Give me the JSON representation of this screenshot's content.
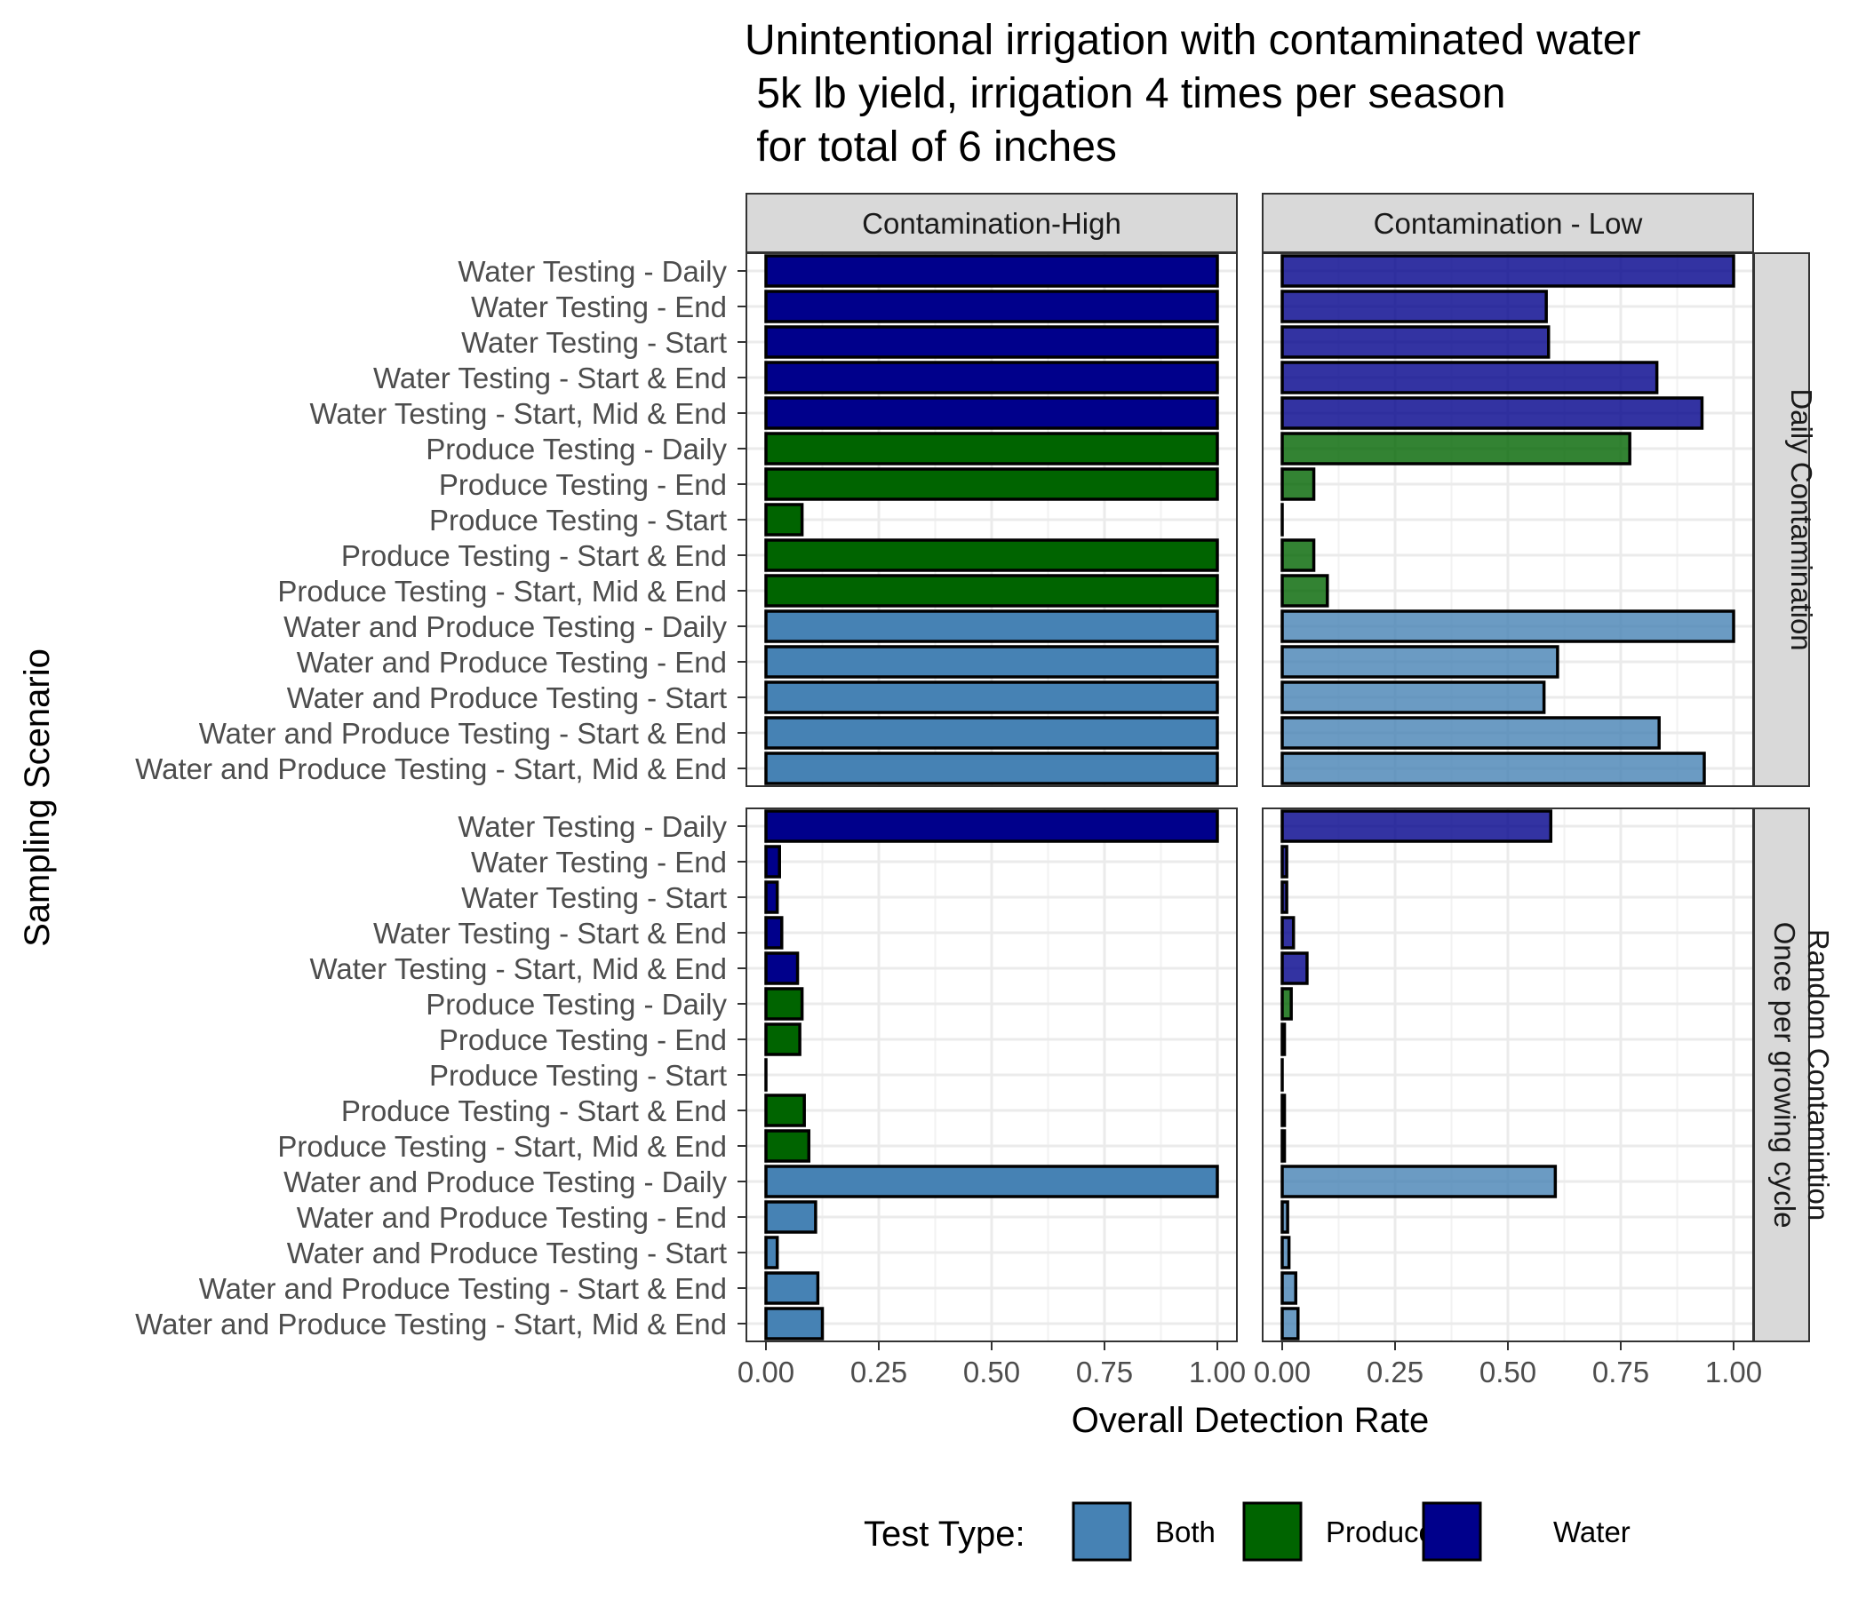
{
  "chart_data": {
    "type": "bar",
    "orientation": "horizontal",
    "title_lines": [
      "Unintentional irrigation with contaminated water",
      " 5k lb yield, irrigation 4 times per season",
      " for total of 6 inches"
    ],
    "xlabel": "Overall Detection Rate",
    "ylabel": "Sampling Scenario",
    "xlim": [
      0,
      1
    ],
    "x_ticks": [
      "0.00",
      "0.25",
      "0.50",
      "0.75",
      "1.00"
    ],
    "grid": true,
    "columns": [
      "Contamination-High",
      "Contamination - Low"
    ],
    "rows": [
      {
        "lines": [
          "Daily Contamination"
        ]
      },
      {
        "lines": [
          "Random Contamintion",
          "Once per growing cycle"
        ]
      }
    ],
    "categories": [
      "Water Testing - Daily",
      "Water Testing -  End",
      "Water Testing -  Start",
      "Water Testing - Start & End",
      "Water Testing - Start, Mid & End",
      "Produce Testing - Daily",
      "Produce Testing - End",
      "Produce Testing - Start",
      "Produce Testing - Start & End",
      "Produce Testing - Start, Mid & End",
      "Water and Produce Testing - Daily",
      "Water and Produce Testing - End",
      "Water and Produce Testing - Start",
      "Water and Produce Testing - Start & End",
      "Water and Produce Testing - Start, Mid & End"
    ],
    "category_test_type": [
      "Water",
      "Water",
      "Water",
      "Water",
      "Water",
      "Produce",
      "Produce",
      "Produce",
      "Produce",
      "Produce",
      "Both",
      "Both",
      "Both",
      "Both",
      "Both"
    ],
    "legend": {
      "title": "Test Type:",
      "position": "bottom",
      "entries": [
        {
          "name": "Both",
          "color": "#4682B4"
        },
        {
          "name": "Produce",
          "color": "#006400"
        },
        {
          "name": "Water",
          "color": "#00008B"
        }
      ]
    },
    "panels": [
      {
        "row": 0,
        "col": 0,
        "alpha": 1.0,
        "values": [
          1.0,
          1.0,
          1.0,
          1.0,
          1.0,
          1.0,
          1.0,
          0.08,
          1.0,
          1.0,
          1.0,
          1.0,
          1.0,
          1.0,
          1.0
        ]
      },
      {
        "row": 0,
        "col": 1,
        "alpha": 0.8,
        "values": [
          1.0,
          0.585,
          0.59,
          0.83,
          0.93,
          0.77,
          0.07,
          0.0,
          0.07,
          0.1,
          1.0,
          0.61,
          0.58,
          0.835,
          0.935
        ]
      },
      {
        "row": 1,
        "col": 0,
        "alpha": 1.0,
        "values": [
          1.0,
          0.03,
          0.025,
          0.035,
          0.07,
          0.08,
          0.075,
          0.0,
          0.085,
          0.095,
          1.0,
          0.11,
          0.025,
          0.115,
          0.125
        ]
      },
      {
        "row": 1,
        "col": 1,
        "alpha": 0.8,
        "values": [
          0.595,
          0.01,
          0.01,
          0.025,
          0.055,
          0.02,
          0.005,
          0.0,
          0.005,
          0.005,
          0.605,
          0.012,
          0.015,
          0.03,
          0.035
        ]
      }
    ]
  }
}
